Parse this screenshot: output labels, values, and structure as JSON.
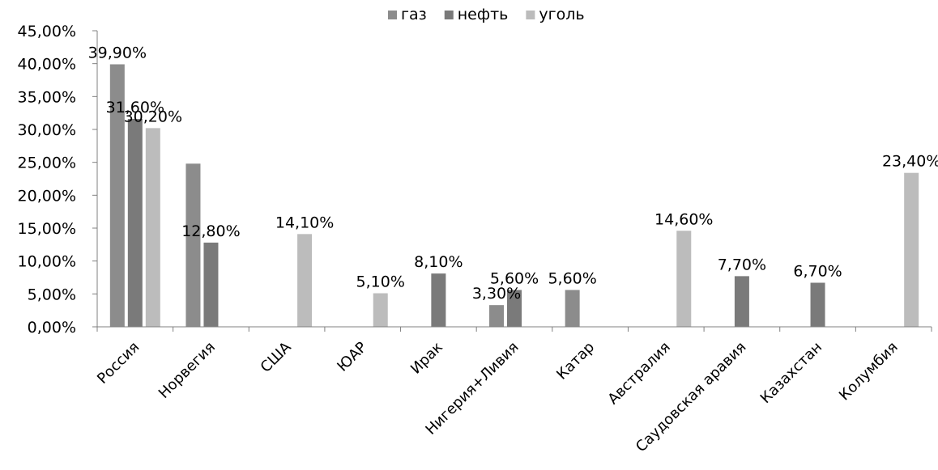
{
  "chart_data": {
    "type": "bar",
    "categories": [
      "Россия",
      "Норвегия",
      "США",
      "ЮАР",
      "Ирак",
      "Нигерия+Ливия",
      "Катар",
      "Австралия",
      "Саудовская аравия",
      "Казахстан",
      "Колумбия"
    ],
    "series": [
      {
        "name": "газ",
        "color": "#8c8c8c",
        "values": [
          39.9,
          24.8,
          null,
          null,
          null,
          3.3,
          5.6,
          null,
          null,
          null,
          null
        ]
      },
      {
        "name": "нефть",
        "color": "#7a7a7a",
        "values": [
          31.6,
          12.8,
          null,
          null,
          8.1,
          5.6,
          null,
          null,
          7.7,
          6.7,
          null
        ]
      },
      {
        "name": "уголь",
        "color": "#bcbcbc",
        "values": [
          30.2,
          null,
          14.1,
          5.1,
          null,
          null,
          null,
          14.6,
          null,
          null,
          23.4
        ]
      }
    ],
    "data_labels": [
      [
        "39,90%",
        null,
        null,
        null,
        null,
        "3,30%",
        "5,60%",
        null,
        null,
        null,
        null
      ],
      [
        "31,60%",
        "12,80%",
        null,
        null,
        "8,10%",
        "5,60%",
        null,
        null,
        "7,70%",
        "6,70%",
        null
      ],
      [
        "30,20%",
        null,
        "14,10%",
        "5,10%",
        null,
        null,
        null,
        "14,60%",
        null,
        null,
        "23,40%"
      ]
    ],
    "y_ticks": [
      "0,00%",
      "5,00%",
      "10,00%",
      "15,00%",
      "20,00%",
      "25,00%",
      "30,00%",
      "35,00%",
      "40,00%",
      "45,00%"
    ],
    "ylim": [
      0,
      45
    ],
    "legend_position": "top",
    "grid": false
  }
}
